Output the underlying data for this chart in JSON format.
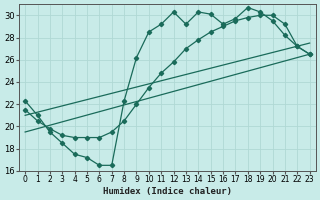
{
  "xlabel": "Humidex (Indice chaleur)",
  "background_color": "#c8ebe8",
  "grid_color": "#b0d8d4",
  "line_color": "#1a6b5a",
  "xlim": [
    -0.5,
    23.5
  ],
  "ylim": [
    16,
    31
  ],
  "yticks": [
    16,
    18,
    20,
    22,
    24,
    26,
    28,
    30
  ],
  "xticks": [
    0,
    1,
    2,
    3,
    4,
    5,
    6,
    7,
    8,
    9,
    10,
    11,
    12,
    13,
    14,
    15,
    16,
    17,
    18,
    19,
    20,
    21,
    22,
    23
  ],
  "line1_x": [
    0,
    1,
    2,
    3,
    4,
    5,
    6,
    7,
    8,
    9,
    10,
    11,
    12,
    13,
    14,
    15,
    16,
    17,
    18,
    19,
    20,
    21,
    22,
    23
  ],
  "line1_y": [
    22.3,
    21.0,
    19.5,
    18.5,
    17.5,
    17.2,
    16.5,
    16.5,
    22.3,
    26.2,
    28.5,
    29.2,
    30.3,
    29.2,
    30.3,
    30.1,
    29.2,
    29.7,
    30.7,
    30.3,
    29.5,
    28.2,
    27.2,
    26.5
  ],
  "line2_x": [
    0,
    1,
    2,
    3,
    4,
    5,
    6,
    7,
    8,
    9,
    10,
    11,
    12,
    13,
    14,
    15,
    16,
    17,
    18,
    19,
    20,
    21,
    22,
    23
  ],
  "line2_y": [
    21.5,
    20.5,
    19.8,
    19.2,
    19.0,
    19.0,
    19.0,
    19.5,
    20.5,
    22.0,
    23.5,
    24.8,
    25.8,
    27.0,
    27.8,
    28.5,
    29.0,
    29.5,
    29.8,
    30.0,
    30.0,
    29.2,
    27.2,
    26.5
  ],
  "line3_x": [
    0,
    23
  ],
  "line3_y": [
    19.5,
    26.5
  ],
  "line4_x": [
    0,
    23
  ],
  "line4_y": [
    21.0,
    27.5
  ]
}
